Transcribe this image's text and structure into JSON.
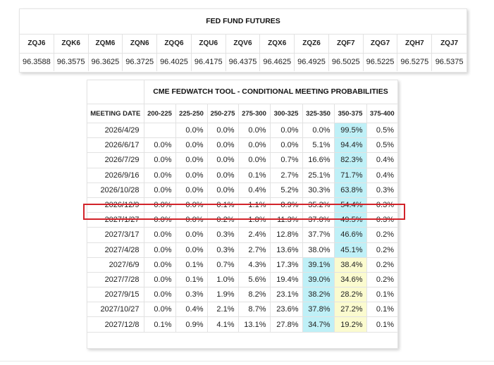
{
  "futures": {
    "title": "FED FUND FUTURES",
    "contracts": [
      "ZQJ6",
      "ZQK6",
      "ZQM6",
      "ZQN6",
      "ZQQ6",
      "ZQU6",
      "ZQV6",
      "ZQX6",
      "ZQZ6",
      "ZQF7",
      "ZQG7",
      "ZQH7",
      "ZQJ7"
    ],
    "prices": [
      "96.3588",
      "96.3575",
      "96.3625",
      "96.3725",
      "96.4025",
      "96.4175",
      "96.4375",
      "96.4625",
      "96.4925",
      "96.5025",
      "96.5225",
      "96.5275",
      "96.5375"
    ]
  },
  "fedwatch": {
    "title": "CME FEDWATCH TOOL - CONDITIONAL MEETING PROBABILITIES",
    "date_header": "MEETING DATE",
    "ranges": [
      "200-225",
      "225-250",
      "250-275",
      "275-300",
      "300-325",
      "325-350",
      "350-375",
      "375-400"
    ],
    "highlight_color": "#d2232a",
    "highlighted_row": "2026/12/9",
    "rows": [
      {
        "date": "2026/4/29",
        "values": [
          "",
          "0.0%",
          "0.0%",
          "0.0%",
          "0.0%",
          "0.0%",
          "99.5%",
          "0.5%"
        ],
        "blue": [
          6
        ],
        "yellow": []
      },
      {
        "date": "2026/6/17",
        "values": [
          "0.0%",
          "0.0%",
          "0.0%",
          "0.0%",
          "0.0%",
          "5.1%",
          "94.4%",
          "0.5%"
        ],
        "blue": [
          6
        ],
        "yellow": []
      },
      {
        "date": "2026/7/29",
        "values": [
          "0.0%",
          "0.0%",
          "0.0%",
          "0.0%",
          "0.7%",
          "16.6%",
          "82.3%",
          "0.4%"
        ],
        "blue": [
          6
        ],
        "yellow": []
      },
      {
        "date": "2026/9/16",
        "values": [
          "0.0%",
          "0.0%",
          "0.0%",
          "0.1%",
          "2.7%",
          "25.1%",
          "71.7%",
          "0.4%"
        ],
        "blue": [
          6
        ],
        "yellow": []
      },
      {
        "date": "2026/10/28",
        "values": [
          "0.0%",
          "0.0%",
          "0.0%",
          "0.4%",
          "5.2%",
          "30.3%",
          "63.8%",
          "0.3%"
        ],
        "blue": [
          6
        ],
        "yellow": []
      },
      {
        "date": "2026/12/9",
        "values": [
          "0.0%",
          "0.0%",
          "0.1%",
          "1.1%",
          "8.9%",
          "35.2%",
          "54.4%",
          "0.3%"
        ],
        "blue": [
          6
        ],
        "yellow": []
      },
      {
        "date": "2027/1/27",
        "values": [
          "0.0%",
          "0.0%",
          "0.2%",
          "1.8%",
          "11.3%",
          "37.0%",
          "49.5%",
          "0.3%"
        ],
        "blue": [
          6
        ],
        "yellow": []
      },
      {
        "date": "2027/3/17",
        "values": [
          "0.0%",
          "0.0%",
          "0.3%",
          "2.4%",
          "12.8%",
          "37.7%",
          "46.6%",
          "0.2%"
        ],
        "blue": [
          6
        ],
        "yellow": []
      },
      {
        "date": "2027/4/28",
        "values": [
          "0.0%",
          "0.0%",
          "0.3%",
          "2.7%",
          "13.6%",
          "38.0%",
          "45.1%",
          "0.2%"
        ],
        "blue": [
          6
        ],
        "yellow": []
      },
      {
        "date": "2027/6/9",
        "values": [
          "0.0%",
          "0.1%",
          "0.7%",
          "4.3%",
          "17.3%",
          "39.1%",
          "38.4%",
          "0.2%"
        ],
        "blue": [
          5
        ],
        "yellow": [
          6
        ]
      },
      {
        "date": "2027/7/28",
        "values": [
          "0.0%",
          "0.1%",
          "1.0%",
          "5.6%",
          "19.4%",
          "39.0%",
          "34.6%",
          "0.2%"
        ],
        "blue": [
          5
        ],
        "yellow": [
          6
        ]
      },
      {
        "date": "2027/9/15",
        "values": [
          "0.0%",
          "0.3%",
          "1.9%",
          "8.2%",
          "23.1%",
          "38.2%",
          "28.2%",
          "0.1%"
        ],
        "blue": [
          5
        ],
        "yellow": [
          6
        ]
      },
      {
        "date": "2027/10/27",
        "values": [
          "0.0%",
          "0.4%",
          "2.1%",
          "8.7%",
          "23.6%",
          "37.8%",
          "27.2%",
          "0.1%"
        ],
        "blue": [
          5
        ],
        "yellow": [
          6
        ]
      },
      {
        "date": "2027/12/8",
        "values": [
          "0.1%",
          "0.9%",
          "4.1%",
          "13.1%",
          "27.8%",
          "34.7%",
          "19.2%",
          "0.1%"
        ],
        "blue": [
          5
        ],
        "yellow": [
          6
        ]
      }
    ]
  }
}
